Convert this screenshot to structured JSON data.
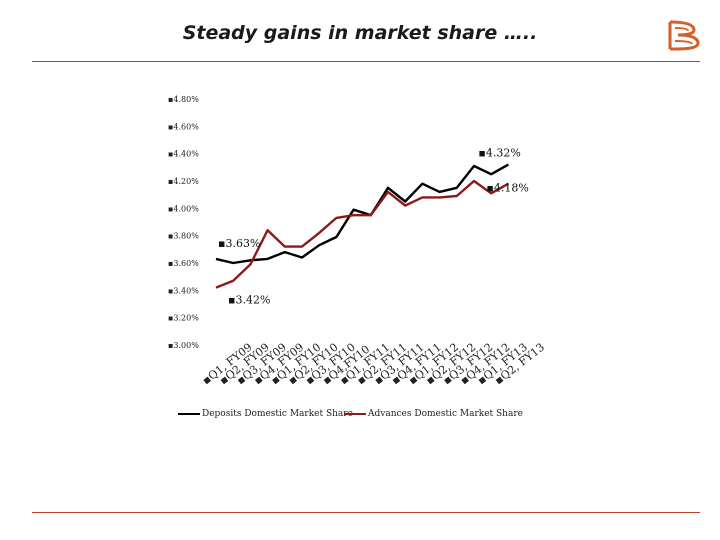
{
  "slide": {
    "title": "Steady gains in market share …..",
    "logo": "bank-of-baroda-logo",
    "colors": {
      "accent": "#b5432f",
      "logo": "#d35f2a"
    }
  },
  "chart_data": {
    "type": "line",
    "categories": [
      "Q1, FY09",
      "Q2, FY09",
      "Q3, FY09",
      "Q4, FY09",
      "Q1, FY10",
      "Q2, FY10",
      "Q3, FY10",
      "Q4,FY10",
      "Q1, FY11",
      "Q2, FY11",
      "Q3, FY11",
      "Q4, FY11",
      "Q1, FY12",
      "Q2, FY12",
      "Q3, FY12",
      "Q4, FY12",
      "Q1, FY13",
      "Q2, FY13"
    ],
    "series": [
      {
        "name": "Deposits Domestic Market Share",
        "color": "#000000",
        "values": [
          3.63,
          3.6,
          3.62,
          3.63,
          3.68,
          3.64,
          3.73,
          3.79,
          3.99,
          3.95,
          4.15,
          4.05,
          4.18,
          4.12,
          4.15,
          4.31,
          4.25,
          4.32
        ]
      },
      {
        "name": "Advances Domestic Market Share",
        "color": "#8b1a1a",
        "values": [
          3.42,
          3.47,
          3.59,
          3.84,
          3.72,
          3.72,
          3.82,
          3.93,
          3.95,
          3.95,
          4.12,
          4.02,
          4.08,
          4.08,
          4.09,
          4.2,
          4.11,
          4.18
        ]
      }
    ],
    "y_ticks": [
      "3.00%",
      "3.20%",
      "3.40%",
      "3.60%",
      "3.80%",
      "4.00%",
      "4.20%",
      "4.40%",
      "4.60%",
      "4.80%"
    ],
    "ylim": [
      3.0,
      4.8
    ],
    "annotations": [
      {
        "text": "3.63%",
        "series": 0,
        "index": 0
      },
      {
        "text": "3.42%",
        "series": 1,
        "index": 0
      },
      {
        "text": "4.32%",
        "series": 0,
        "index": 17
      },
      {
        "text": "4.18%",
        "series": 1,
        "index": 17
      }
    ],
    "legend_position": "bottom",
    "grid": false
  }
}
